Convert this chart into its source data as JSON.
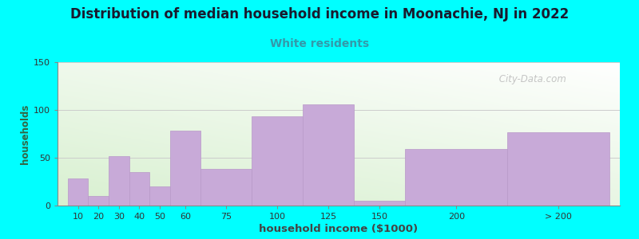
{
  "title": "Distribution of median household income in Moonachie, NJ in 2022",
  "subtitle": "White residents",
  "xlabel": "household income ($1000)",
  "ylabel": "households",
  "background_color": "#00FFFF",
  "plot_bg_top": "#f5f5f0",
  "plot_bg_bottom": "#d8f0d0",
  "bar_color": "#c8aad8",
  "bar_edge_color": "#b898c8",
  "title_fontsize": 12,
  "subtitle_fontsize": 10,
  "subtitle_color": "#3399aa",
  "title_color": "#1a1a2e",
  "categories": [
    "10",
    "20",
    "30",
    "40",
    "50",
    "60",
    "75",
    "100",
    "125",
    "150",
    "200",
    "> 200"
  ],
  "values": [
    28,
    10,
    52,
    35,
    20,
    78,
    38,
    93,
    106,
    5,
    59,
    77
  ],
  "bar_widths": [
    10,
    10,
    10,
    10,
    10,
    15,
    25,
    25,
    25,
    25,
    50,
    50
  ],
  "bar_lefts": [
    5,
    15,
    25,
    35,
    45,
    55,
    70,
    95,
    120,
    145,
    170,
    220
  ],
  "xmax": 275,
  "ylim": [
    0,
    150
  ],
  "yticks": [
    0,
    50,
    100,
    150
  ],
  "watermark": " City-Data.com"
}
